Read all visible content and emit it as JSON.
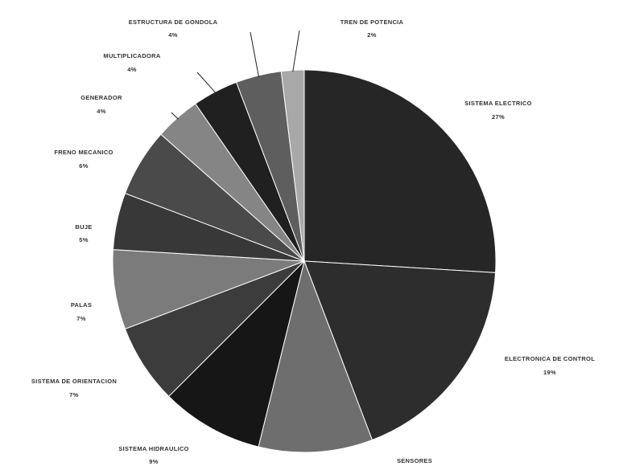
{
  "chart_data": {
    "type": "pie",
    "title": "",
    "slices": [
      {
        "label": "SISTEMA ELECTRICO",
        "pct_text": "27%",
        "value": 27,
        "color": "#262626"
      },
      {
        "label": "ELECTRONICA DE CONTROL",
        "pct_text": "19%",
        "value": 19,
        "color": "#2d2d2d"
      },
      {
        "label": "SENSORES",
        "pct_text": "",
        "value": 10,
        "color": "#6e6e6e"
      },
      {
        "label": "SISTEMA HIDRAULICO",
        "pct_text": "9%",
        "value": 9,
        "color": "#161616"
      },
      {
        "label": "SISTEMA DE ORIENTACION",
        "pct_text": "7%",
        "value": 7,
        "color": "#3c3c3c"
      },
      {
        "label": "PALAS",
        "pct_text": "7%",
        "value": 7,
        "color": "#7b7b7b"
      },
      {
        "label": "BUJE",
        "pct_text": "5%",
        "value": 5,
        "color": "#383838"
      },
      {
        "label": "FRENO MECANICO",
        "pct_text": "6%",
        "value": 6,
        "color": "#4a4a4a"
      },
      {
        "label": "GENERADOR",
        "pct_text": "4%",
        "value": 4,
        "color": "#858585"
      },
      {
        "label": "MULTIPLICADORA",
        "pct_text": "4%",
        "value": 4,
        "color": "#202020"
      },
      {
        "label": "ESTRUCTURA DE GONDOLA",
        "pct_text": "4%",
        "value": 4,
        "color": "#5e5e5e"
      },
      {
        "label": "TREN DE POTENCIA",
        "pct_text": "2%",
        "value": 2,
        "color": "#a8a8a8"
      }
    ]
  }
}
